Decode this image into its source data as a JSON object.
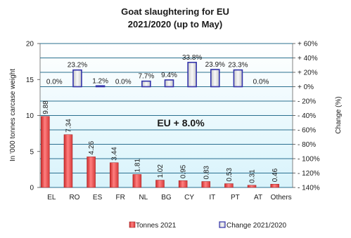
{
  "chart_data": {
    "type": "bar",
    "title_line1": "Goat slaughtering for EU",
    "title_line2": "2021/2020 (up to May)",
    "ylabel": "In '000 tonnes carcase  weight",
    "y2label": "Change  (%)",
    "annotation": "EU  + 8.0%",
    "categories": [
      "EL",
      "RO",
      "ES",
      "FR",
      "NL",
      "BG",
      "CY",
      "IT",
      "PT",
      "AT",
      "Others"
    ],
    "ylim": [
      0,
      20
    ],
    "y_ticks": [
      "0",
      "5",
      "10",
      "15",
      "20"
    ],
    "y2lim": [
      -140,
      60
    ],
    "y2_ticks": [
      "- 140%",
      "- 120%",
      "- 100%",
      "- 80%",
      "- 60%",
      "- 40%",
      "- 20%",
      "+ 0%",
      "+ 20%",
      "+ 40%",
      "+ 60%"
    ],
    "series": [
      {
        "name": "Tonnes 2021",
        "axis": "left",
        "color": "#ff4d4d",
        "values": [
          9.88,
          7.34,
          4.26,
          3.44,
          1.81,
          1.02,
          0.95,
          0.83,
          0.53,
          0.31,
          0.46
        ],
        "labels": [
          "9.88",
          "7.34",
          "4.26",
          "3.44",
          "1.81",
          "1.02",
          "0.95",
          "0.83",
          "0.53",
          "0.31",
          "0.46"
        ]
      },
      {
        "name": "Change 2021/2020",
        "axis": "right",
        "color": "#3333aa",
        "values": [
          0.0,
          23.2,
          1.2,
          0.0,
          7.7,
          9.4,
          33.8,
          23.9,
          23.3,
          0.0,
          null
        ],
        "labels": [
          "0.0%",
          "23.2%",
          "1.2%",
          "0.0%",
          "7.7%",
          "9.4%",
          "33.8%",
          "23.9%",
          "23.3%",
          "0.0%",
          ""
        ]
      }
    ],
    "legend_position": "bottom",
    "grid": true
  }
}
